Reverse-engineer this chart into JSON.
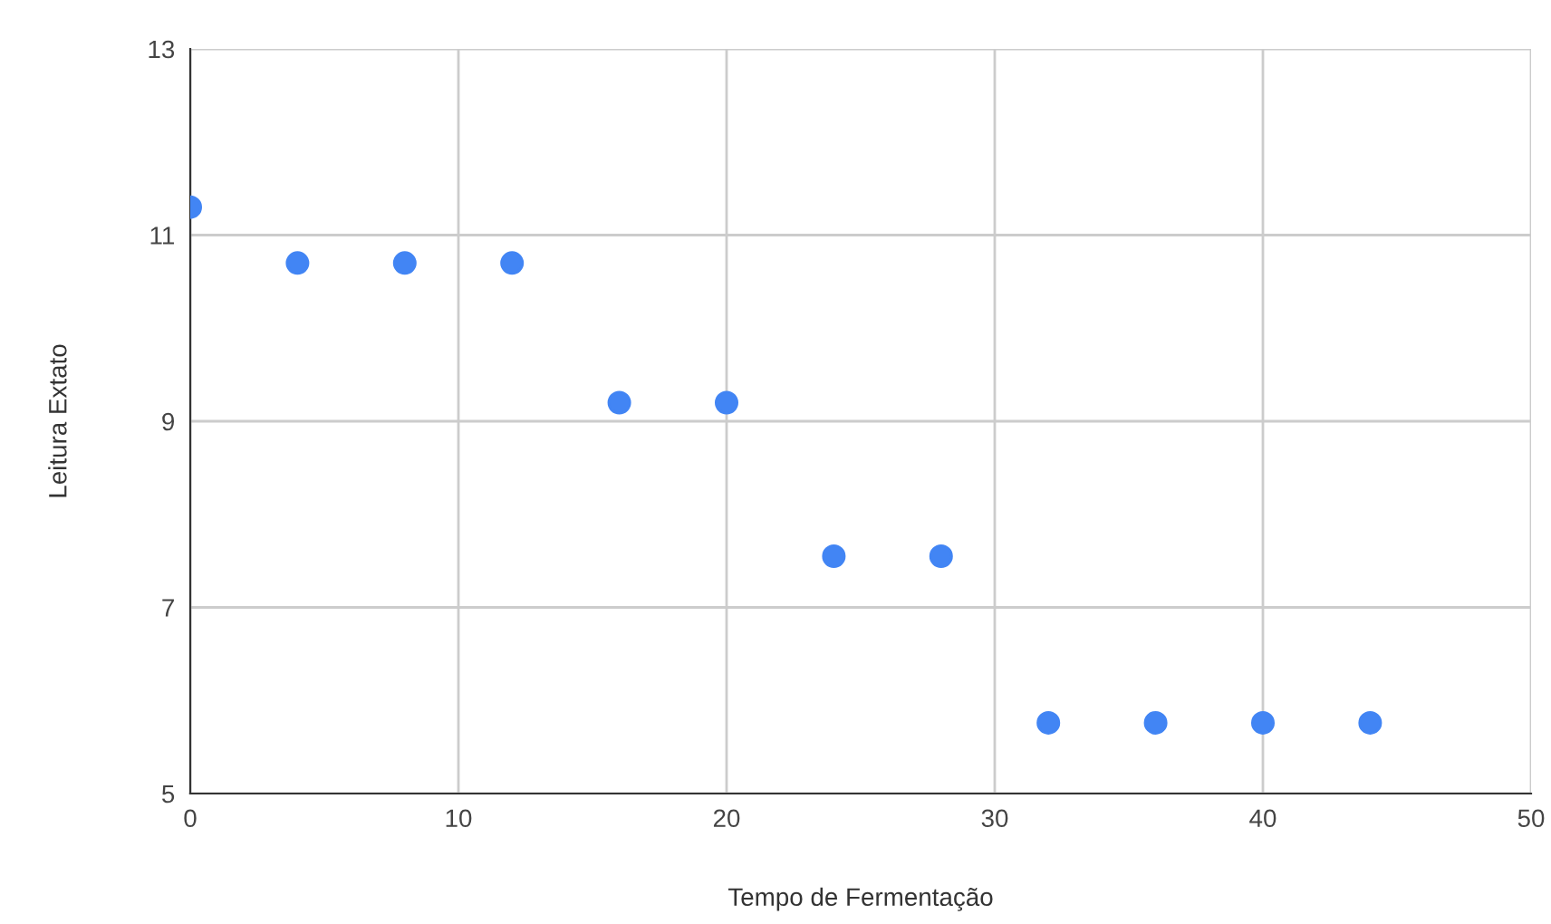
{
  "chart_data": {
    "type": "scatter",
    "xlabel": "Tempo de Fermentação",
    "ylabel": "Leitura Extato",
    "x": [
      0,
      4,
      8,
      12,
      16,
      20,
      24,
      28,
      32,
      36,
      40,
      44
    ],
    "series": [
      {
        "color": "#4285f4",
        "values": [
          11.3,
          10.7,
          10.7,
          10.7,
          9.2,
          9.2,
          7.55,
          7.55,
          5.76,
          5.76,
          5.76,
          5.76
        ]
      }
    ],
    "xlim": [
      0,
      50
    ],
    "xticks": [
      0,
      10,
      20,
      30,
      40,
      50
    ],
    "ylim": [
      5,
      13
    ],
    "yticks": [
      5,
      7,
      9,
      11,
      13
    ],
    "grid": true,
    "marker": "circle"
  }
}
